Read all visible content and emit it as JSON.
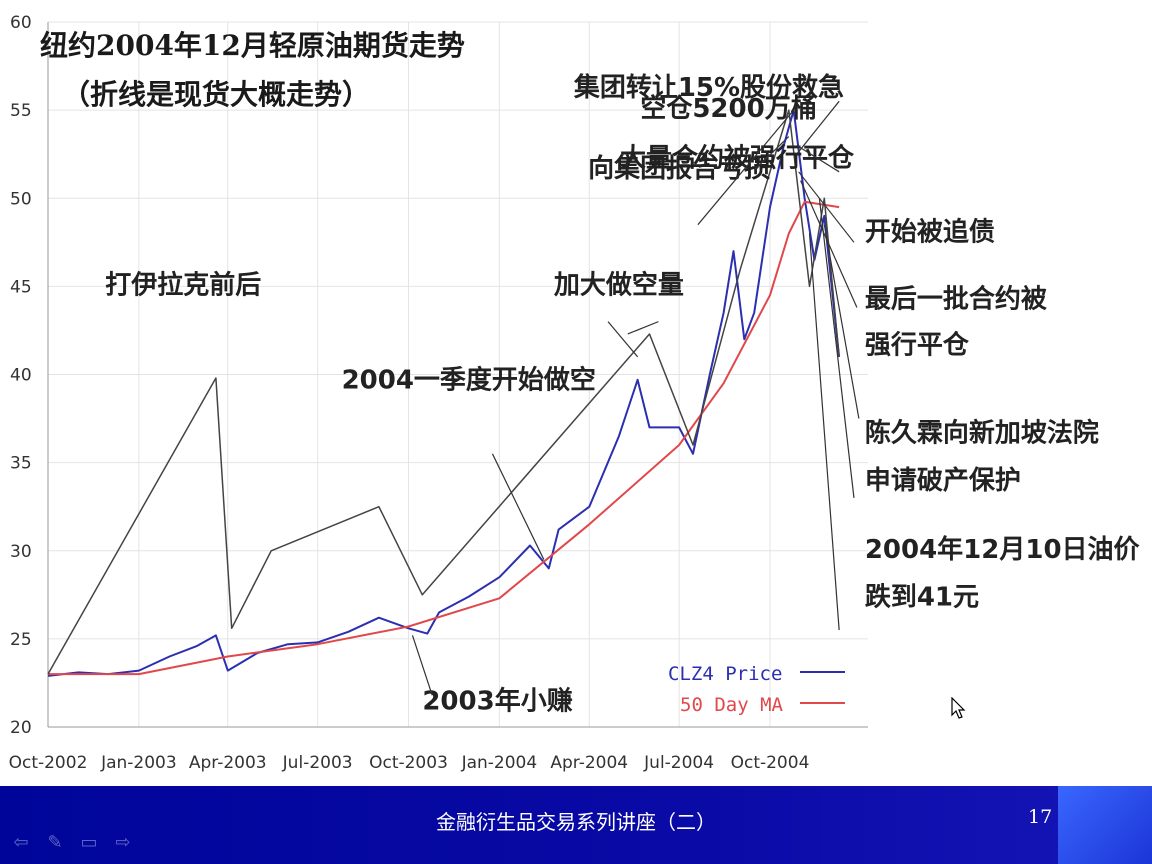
{
  "slide": {
    "footer_title": "金融衍生品交易系列讲座（二）",
    "page_number": "17",
    "nav_icons": [
      "arrow-left-icon",
      "pen-icon",
      "screen-icon",
      "arrow-right-icon"
    ]
  },
  "chart_data": {
    "type": "line",
    "title": "纽约2004年12月轻原油期货走势",
    "subtitle": "（折线是现货大概走势）",
    "x_tick_labels": [
      "Oct-2002",
      "Jan-2003",
      "Apr-2003",
      "Jul-2003",
      "Oct-2003",
      "Jan-2004",
      "Apr-2004",
      "Jul-2004",
      "Oct-2004"
    ],
    "y_ticks": [
      20,
      25,
      30,
      35,
      40,
      45,
      50,
      55,
      60
    ],
    "ylim": [
      20,
      60
    ],
    "grid": true,
    "legend_position": "bottom-right",
    "colors": {
      "price": "#2b2fb0",
      "ma": "#e0484b",
      "spot": "#444444"
    },
    "series": [
      {
        "name": "CLZ4 Price",
        "points": [
          [
            "2002-10-01",
            22.9
          ],
          [
            "2002-11-01",
            23.1
          ],
          [
            "2002-12-01",
            23.0
          ],
          [
            "2003-01-01",
            23.2
          ],
          [
            "2003-02-01",
            24.0
          ],
          [
            "2003-03-01",
            24.6
          ],
          [
            "2003-03-20",
            25.2
          ],
          [
            "2003-04-01",
            23.2
          ],
          [
            "2003-05-01",
            24.2
          ],
          [
            "2003-06-01",
            24.7
          ],
          [
            "2003-07-01",
            24.8
          ],
          [
            "2003-08-01",
            25.4
          ],
          [
            "2003-09-01",
            26.2
          ],
          [
            "2003-10-01",
            25.6
          ],
          [
            "2003-10-20",
            25.3
          ],
          [
            "2003-11-01",
            26.5
          ],
          [
            "2003-12-01",
            27.4
          ],
          [
            "2004-01-01",
            28.5
          ],
          [
            "2004-02-01",
            30.3
          ],
          [
            "2004-02-20",
            29.0
          ],
          [
            "2004-03-01",
            31.2
          ],
          [
            "2004-04-01",
            32.5
          ],
          [
            "2004-05-01",
            36.5
          ],
          [
            "2004-05-20",
            39.7
          ],
          [
            "2004-06-01",
            37.0
          ],
          [
            "2004-07-01",
            37.0
          ],
          [
            "2004-07-15",
            35.5
          ],
          [
            "2004-08-01",
            40.0
          ],
          [
            "2004-08-15",
            43.5
          ],
          [
            "2004-08-25",
            47.0
          ],
          [
            "2004-09-05",
            42.0
          ],
          [
            "2004-09-15",
            43.5
          ],
          [
            "2004-10-01",
            49.5
          ],
          [
            "2004-10-15",
            53.0
          ],
          [
            "2004-10-25",
            55.0
          ],
          [
            "2004-11-05",
            50.0
          ],
          [
            "2004-11-15",
            46.5
          ],
          [
            "2004-11-25",
            49.0
          ],
          [
            "2004-12-10",
            41.0
          ]
        ]
      },
      {
        "name": "50 Day MA",
        "points": [
          [
            "2002-10-01",
            23.0
          ],
          [
            "2003-01-01",
            23.0
          ],
          [
            "2003-04-01",
            24.0
          ],
          [
            "2003-07-01",
            24.7
          ],
          [
            "2003-10-01",
            25.7
          ],
          [
            "2004-01-01",
            27.3
          ],
          [
            "2004-04-01",
            31.5
          ],
          [
            "2004-07-01",
            36.0
          ],
          [
            "2004-08-15",
            39.5
          ],
          [
            "2004-10-01",
            44.5
          ],
          [
            "2004-10-20",
            48.0
          ],
          [
            "2004-11-05",
            49.8
          ],
          [
            "2004-12-10",
            49.5
          ]
        ]
      },
      {
        "points": [
          [
            "2002-10-01",
            23.0
          ],
          [
            "2003-03-20",
            39.8
          ],
          [
            "2003-04-05",
            25.6
          ],
          [
            "2003-05-15",
            30.0
          ],
          [
            "2003-09-01",
            32.5
          ],
          [
            "2003-10-15",
            27.5
          ],
          [
            "2004-06-01",
            42.3
          ],
          [
            "2004-07-15",
            36.0
          ],
          [
            "2004-09-01",
            46.0
          ],
          [
            "2004-10-20",
            55.0
          ],
          [
            "2004-11-10",
            45.0
          ],
          [
            "2004-11-25",
            50.0
          ],
          [
            "2004-12-10",
            41.0
          ]
        ]
      }
    ],
    "annotations": [
      {
        "text": "打伊拉克前后",
        "date": "2003-02-15",
        "value": 44.6
      },
      {
        "text": "2004一季度开始做空",
        "date": "2003-12-01",
        "value": 39.2
      },
      {
        "text": "加大做空量",
        "date": "2004-05-01",
        "value": 44.6
      },
      {
        "text": "向集团报告亏损",
        "date": "2004-07-01",
        "value": 51.2
      },
      {
        "text": "空仓5200万桶",
        "date": "2004-08-20",
        "value": 54.6
      },
      {
        "text": "集团转让15%股份救急",
        "date": "2004-12-15",
        "value": 55.8
      },
      {
        "text": "大量合约被强行平仓",
        "date": "2004-12-25",
        "value": 51.8
      },
      {
        "text": "开始被追债",
        "date": "2005-01-05",
        "value": 47.6
      },
      {
        "text": "最后一批合约被",
        "date": "2005-01-05",
        "value": 43.8
      },
      {
        "text": "强行平仓",
        "date": "2005-01-05",
        "value": 41.2
      },
      {
        "text": "陈久霖向新加坡法院",
        "date": "2005-01-05",
        "value": 36.2
      },
      {
        "text": "申请破产保护",
        "date": "2005-01-05",
        "value": 33.5
      },
      {
        "text": "2004年12月10日油价",
        "date": "2005-01-05",
        "value": 29.6
      },
      {
        "text": "跌到41元",
        "date": "2005-01-05",
        "value": 26.9
      },
      {
        "text": "2003年小赚",
        "date": "2003-10-15",
        "value": 21.0
      }
    ]
  }
}
